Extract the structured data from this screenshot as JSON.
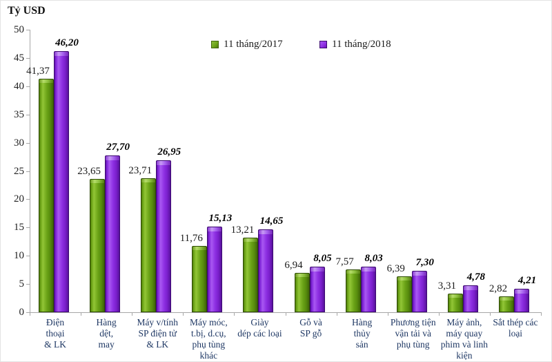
{
  "title": "Tỷ USD",
  "legend": [
    {
      "label": "11 tháng/2017",
      "color": "#6ba317",
      "border": "#3f6408"
    },
    {
      "label": "11 tháng/2018",
      "color": "#8d2fe2",
      "border": "#3c0a70"
    }
  ],
  "y_axis": {
    "ticks": [
      "0",
      "5",
      "10",
      "15",
      "20",
      "25",
      "30",
      "35",
      "40",
      "45",
      "50"
    ],
    "min": 0,
    "max": 50
  },
  "chart_data": {
    "type": "bar",
    "title": "Tỷ USD",
    "xlabel": "",
    "ylabel": "Tỷ USD",
    "ylim": [
      0,
      50
    ],
    "grid": false,
    "legend_position": "top",
    "categories": [
      "Điện thoại & LK",
      "Hàng dệt, may",
      "Máy v/tính SP điện tử & LK",
      "Máy móc, t.bị, d.cụ, phụ tùng khác",
      "Giày dép các loại",
      "Gỗ và SP gỗ",
      "Hàng thủy sản",
      "Phương tiện vận tải và phụ tùng",
      "Máy ảnh, máy quay phim và linh kiện",
      "Sắt thép các loại"
    ],
    "category_lines": [
      [
        "Điện",
        "thoại",
        "& LK"
      ],
      [
        "Hàng",
        "dệt,",
        "may"
      ],
      [
        "Máy v/tính",
        "SP điện tử",
        "& LK"
      ],
      [
        "Máy móc,",
        "t.bị, d.cụ,",
        "phụ tùng",
        "khác"
      ],
      [
        "Giày",
        "dép các loại"
      ],
      [
        "Gỗ và",
        "SP gỗ"
      ],
      [
        "Hàng",
        "thủy",
        "sản"
      ],
      [
        "Phương tiện",
        "vận tải và",
        "phụ tùng"
      ],
      [
        "Máy ảnh,",
        "máy quay",
        "phim và linh",
        "kiện"
      ],
      [
        "Sắt thép các",
        "loại"
      ]
    ],
    "series": [
      {
        "name": "11 tháng/2017",
        "values": [
          41.37,
          23.65,
          23.71,
          11.76,
          13.21,
          6.94,
          7.57,
          6.39,
          3.31,
          2.82
        ],
        "labels": [
          "41,37",
          "23,65",
          "23,71",
          "11,76",
          "13,21",
          "6,94",
          "7,57",
          "6,39",
          "3,31",
          "2,82"
        ]
      },
      {
        "name": "11 tháng/2018",
        "values": [
          46.2,
          27.7,
          26.95,
          15.13,
          14.65,
          8.05,
          8.03,
          7.3,
          4.78,
          4.21
        ],
        "labels": [
          "46,20",
          "27,70",
          "26,95",
          "15,13",
          "14,65",
          "8,05",
          "8,03",
          "7,30",
          "4,78",
          "4,21"
        ]
      }
    ]
  }
}
